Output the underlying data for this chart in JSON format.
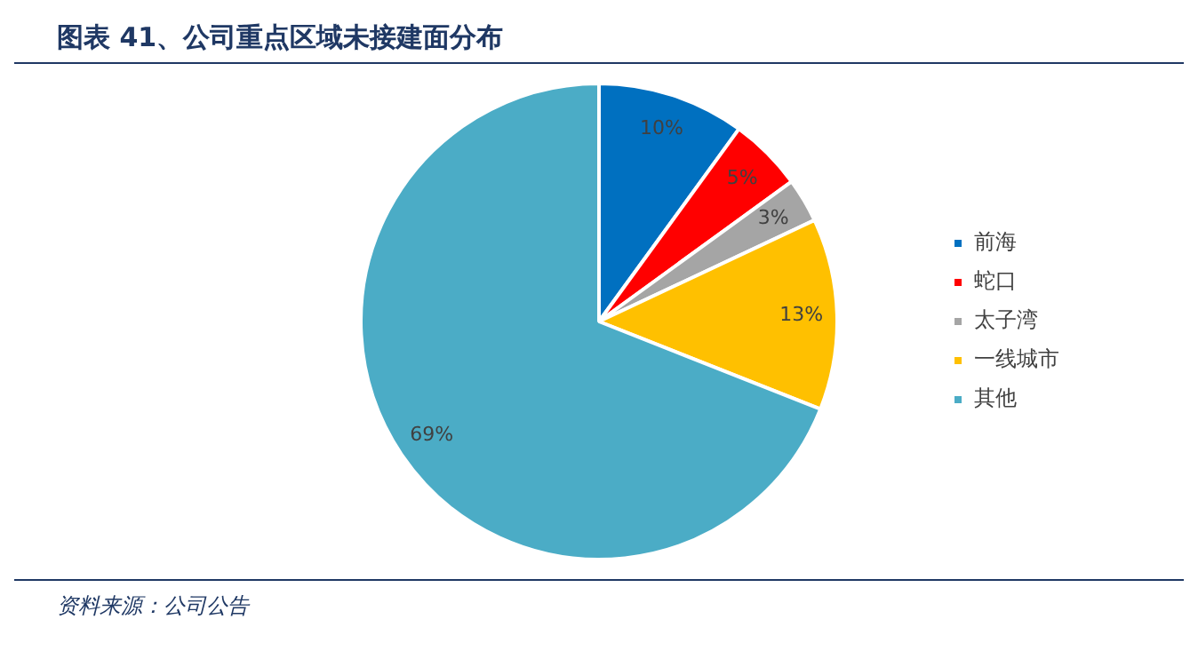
{
  "chart_data": {
    "type": "pie",
    "title": "图表 41、公司重点区域未接建面分布",
    "categories": [
      "前海",
      "蛇口",
      "太子湾",
      "一线城市",
      "其他"
    ],
    "values": [
      10,
      5,
      3,
      13,
      69
    ],
    "value_labels": [
      "10%",
      "5%",
      "3%",
      "13%",
      "69%"
    ],
    "colors": [
      "#0070c0",
      "#ff0000",
      "#a5a5a5",
      "#ffc000",
      "#4bacc6"
    ],
    "legend": "right",
    "annotations": [
      "资料来源：公司公告"
    ]
  }
}
